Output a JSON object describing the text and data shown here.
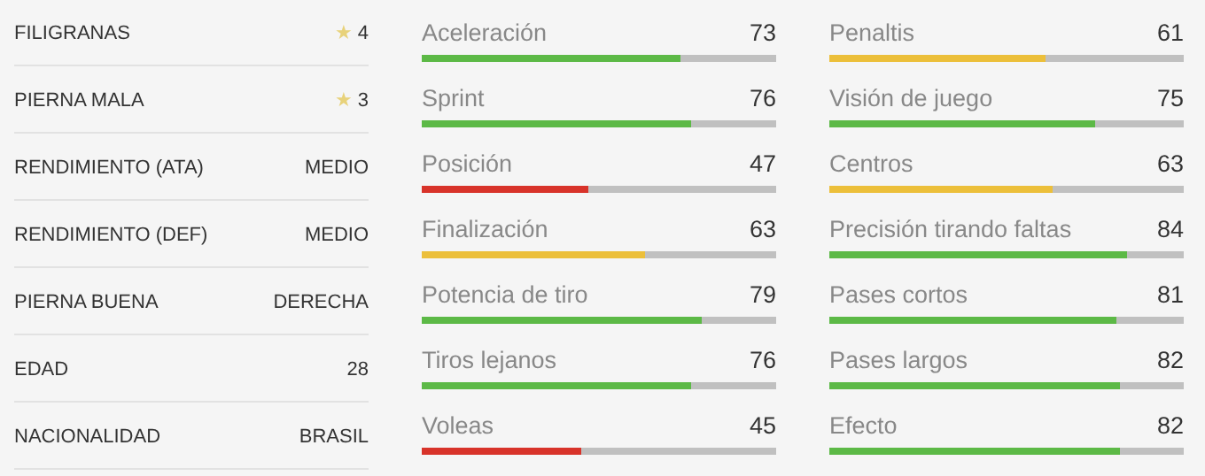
{
  "chart_data": [
    {
      "type": "other",
      "categories": [
        "FILIGRANAS",
        "PIERNA MALA",
        "RENDIMIENTO (ATA)",
        "RENDIMIENTO (DEF)",
        "PIERNA BUENA",
        "EDAD",
        "NACIONALIDAD"
      ],
      "value_labels": [
        "★ 4",
        "★ 3",
        "MEDIO",
        "MEDIO",
        "DERECHA",
        "28",
        "BRASIL"
      ]
    },
    {
      "type": "bar",
      "orientation": "horizontal",
      "categories": [
        "Aceleración",
        "Sprint",
        "Posición",
        "Finalización",
        "Potencia de tiro",
        "Tiros lejanos",
        "Voleas"
      ],
      "values": [
        73,
        76,
        47,
        63,
        79,
        76,
        45
      ],
      "colors": [
        "#5cb946",
        "#5cb946",
        "#d8332a",
        "#ecbf3a",
        "#5cb946",
        "#5cb946",
        "#d8332a"
      ],
      "xlim": [
        0,
        100
      ],
      "data_labels": true
    },
    {
      "type": "bar",
      "orientation": "horizontal",
      "categories": [
        "Penaltis",
        "Visión de juego",
        "Centros",
        "Precisión tirando faltas",
        "Pases cortos",
        "Pases largos",
        "Efecto"
      ],
      "values": [
        61,
        75,
        63,
        84,
        81,
        82,
        82
      ],
      "colors": [
        "#ecbf3a",
        "#5cb946",
        "#ecbf3a",
        "#5cb946",
        "#5cb946",
        "#5cb946",
        "#5cb946"
      ],
      "xlim": [
        0,
        100
      ],
      "data_labels": true
    }
  ]
}
